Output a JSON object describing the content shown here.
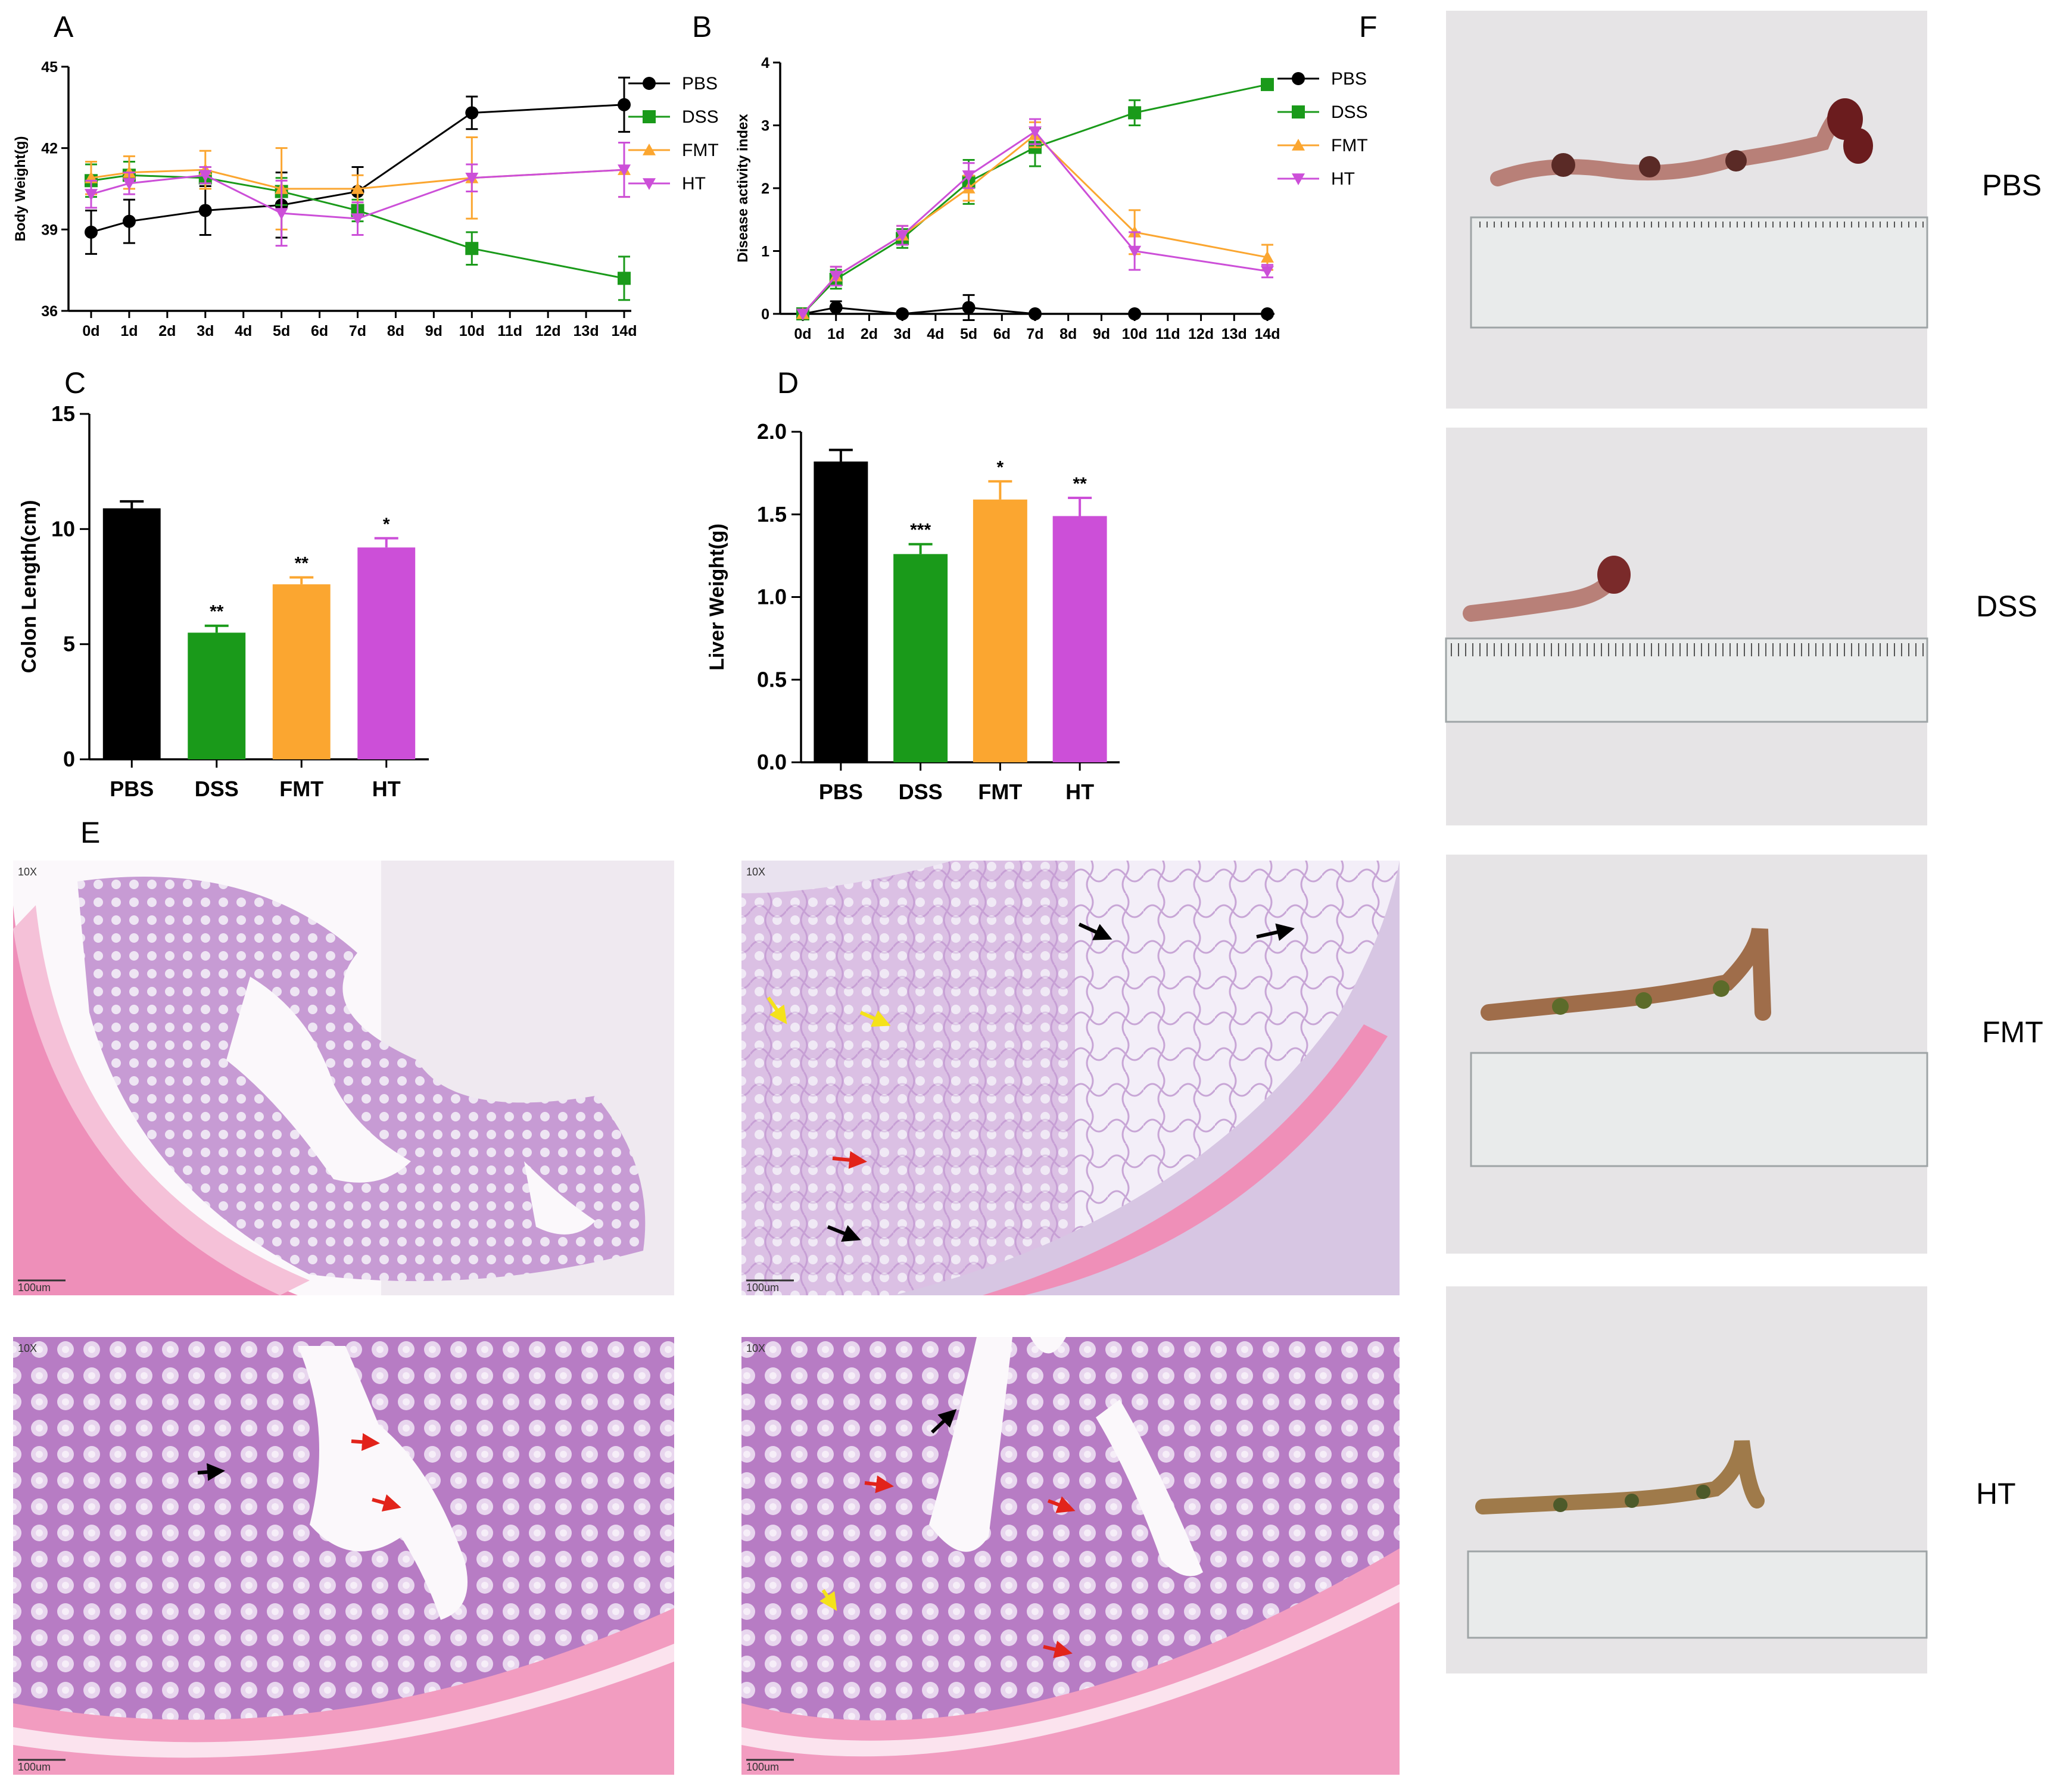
{
  "colors": {
    "PBS": "#000000",
    "DSS": "#1a9a1a",
    "FMT": "#fba630",
    "HT": "#cc4fd8"
  },
  "panels": {
    "A": "A",
    "B": "B",
    "C": "C",
    "D": "D",
    "E": "E",
    "F": "F"
  },
  "chart_data": [
    {
      "id": "A",
      "type": "line",
      "ylabel": "Body Weight(g)",
      "xlabel": "",
      "ylim": [
        36,
        45
      ],
      "yticks": [
        36,
        39,
        42,
        45
      ],
      "x_categories": [
        "0d",
        "1d",
        "2d",
        "3d",
        "4d",
        "5d",
        "6d",
        "7d",
        "8d",
        "9d",
        "10d",
        "11d",
        "12d",
        "13d",
        "14d"
      ],
      "legend_position": "right",
      "series": [
        {
          "name": "PBS",
          "marker": "circle",
          "x": [
            0,
            1,
            3,
            5,
            7,
            10,
            14
          ],
          "y": [
            38.9,
            39.3,
            39.7,
            39.9,
            40.4,
            43.3,
            43.6
          ],
          "err": [
            0.8,
            0.8,
            0.9,
            1.2,
            0.9,
            0.6,
            1.0
          ]
        },
        {
          "name": "DSS",
          "marker": "square",
          "x": [
            0,
            1,
            3,
            5,
            7,
            10,
            14
          ],
          "y": [
            40.8,
            41.0,
            40.9,
            40.4,
            39.7,
            38.3,
            37.2
          ],
          "err": [
            0.6,
            0.5,
            0.4,
            0.5,
            0.4,
            0.6,
            0.8
          ]
        },
        {
          "name": "FMT",
          "marker": "triangle-up",
          "x": [
            0,
            1,
            3,
            5,
            7,
            10,
            14
          ],
          "y": [
            40.9,
            41.1,
            41.2,
            40.5,
            40.5,
            40.9,
            41.2
          ],
          "err": [
            0.6,
            0.6,
            0.7,
            1.5,
            0.5,
            1.5,
            1.0
          ]
        },
        {
          "name": "HT",
          "marker": "triangle-down",
          "x": [
            0,
            1,
            3,
            5,
            7,
            10,
            14
          ],
          "y": [
            40.3,
            40.7,
            41.0,
            39.6,
            39.4,
            40.9,
            41.2
          ],
          "err": [
            0.5,
            0.4,
            0.3,
            1.2,
            0.6,
            0.5,
            1.0
          ]
        }
      ]
    },
    {
      "id": "B",
      "type": "line",
      "ylabel": "Disease activity index",
      "xlabel": "",
      "ylim": [
        0,
        4
      ],
      "yticks": [
        0,
        1,
        2,
        3,
        4
      ],
      "x_categories": [
        "0d",
        "1d",
        "2d",
        "3d",
        "4d",
        "5d",
        "6d",
        "7d",
        "8d",
        "9d",
        "10d",
        "11d",
        "12d",
        "13d",
        "14d"
      ],
      "legend_position": "right",
      "series": [
        {
          "name": "PBS",
          "marker": "circle",
          "x": [
            0,
            1,
            3,
            5,
            7,
            10,
            14
          ],
          "y": [
            0,
            0.1,
            0,
            0.1,
            0,
            0,
            0
          ],
          "err": [
            0,
            0.1,
            0,
            0.2,
            0,
            0,
            0
          ]
        },
        {
          "name": "DSS",
          "marker": "square",
          "x": [
            0,
            1,
            3,
            5,
            7,
            10,
            14
          ],
          "y": [
            0,
            0.55,
            1.2,
            2.1,
            2.65,
            3.2,
            3.65
          ],
          "err": [
            0,
            0.15,
            0.15,
            0.35,
            0.3,
            0.2,
            0
          ]
        },
        {
          "name": "FMT",
          "marker": "triangle-up",
          "x": [
            0,
            1,
            3,
            5,
            7,
            10,
            14
          ],
          "y": [
            0,
            0.6,
            1.25,
            2.0,
            2.85,
            1.3,
            0.9
          ],
          "err": [
            0,
            0.15,
            0.15,
            0.2,
            0.2,
            0.35,
            0.2
          ]
        },
        {
          "name": "HT",
          "marker": "triangle-down",
          "x": [
            0,
            1,
            3,
            5,
            7,
            10,
            14
          ],
          "y": [
            0,
            0.6,
            1.25,
            2.2,
            2.9,
            1.0,
            0.68
          ],
          "err": [
            0,
            0.15,
            0.15,
            0.2,
            0.2,
            0.3,
            0.1
          ]
        }
      ]
    },
    {
      "id": "C",
      "type": "bar",
      "ylabel": "Colon Length(cm)",
      "xlabel": "",
      "ylim": [
        0,
        15
      ],
      "yticks": [
        0,
        5,
        10,
        15
      ],
      "categories": [
        "PBS",
        "DSS",
        "FMT",
        "HT"
      ],
      "values": [
        10.9,
        5.5,
        7.6,
        9.2
      ],
      "errors": [
        0.3,
        0.3,
        0.3,
        0.4
      ],
      "significance": [
        "",
        "**",
        "**",
        "*"
      ]
    },
    {
      "id": "D",
      "type": "bar",
      "ylabel": "Liver Weight(g)",
      "xlabel": "",
      "ylim": [
        0,
        2.0
      ],
      "yticks": [
        0.0,
        0.5,
        1.0,
        1.5,
        2.0
      ],
      "ytick_labels": [
        "0.0",
        "0.5",
        "1.0",
        "1.5",
        "2.0"
      ],
      "categories": [
        "PBS",
        "DSS",
        "FMT",
        "HT"
      ],
      "values": [
        1.82,
        1.26,
        1.59,
        1.49
      ],
      "errors": [
        0.07,
        0.06,
        0.11,
        0.11
      ],
      "significance": [
        "",
        "***",
        "*",
        "**"
      ]
    }
  ],
  "histology": {
    "magnification": "10X",
    "scale_bar": "100um"
  },
  "photos": {
    "labels": [
      "PBS",
      "DSS",
      "FMT",
      "HT"
    ]
  }
}
